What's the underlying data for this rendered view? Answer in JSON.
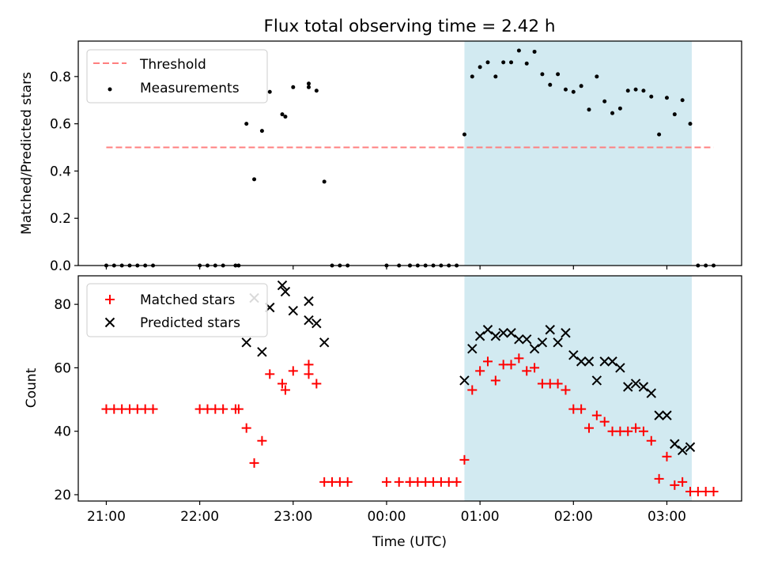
{
  "figure": {
    "title": "Flux total observing time = 2.42 h"
  },
  "colors": {
    "threshold": "#ff7f7f",
    "measurements": "#000000",
    "matched": "#ff0000",
    "predicted": "#000000",
    "observing_window": "#add8e6"
  },
  "chart_data": [
    {
      "type": "scatter",
      "ylabel": "Matched/Predicted stars",
      "ylim": [
        0,
        0.95
      ],
      "yticks": [
        0.0,
        0.2,
        0.4,
        0.6,
        0.8
      ],
      "ytick_labels": [
        "0.0",
        "0.2",
        "0.4",
        "0.6",
        "0.8"
      ],
      "xlim": [
        "20:42",
        "03:48"
      ],
      "xticks": [
        "21:00",
        "22:00",
        "23:00",
        "00:00",
        "01:00",
        "02:00",
        "03:00"
      ],
      "grid": false,
      "legend_position": "upper-left",
      "observing_window": [
        "00:50",
        "03:16"
      ],
      "legend": [
        "Threshold",
        "Measurements"
      ],
      "threshold": {
        "name": "Threshold",
        "y": 0.5,
        "x": [
          "21:00",
          "03:30"
        ]
      },
      "measurements": {
        "name": "Measurements",
        "points": [
          [
            "21:00",
            0
          ],
          [
            "21:05",
            0
          ],
          [
            "21:10",
            0
          ],
          [
            "21:15",
            0
          ],
          [
            "21:20",
            0
          ],
          [
            "21:25",
            0
          ],
          [
            "21:30",
            0
          ],
          [
            "22:00",
            0
          ],
          [
            "22:05",
            0
          ],
          [
            "22:10",
            0
          ],
          [
            "22:15",
            0
          ],
          [
            "22:23",
            0
          ],
          [
            "22:25",
            0
          ],
          [
            "22:30",
            0.6
          ],
          [
            "22:35",
            0.365
          ],
          [
            "22:40",
            0.57
          ],
          [
            "22:45",
            0.735
          ],
          [
            "22:53",
            0.64
          ],
          [
            "22:55",
            0.63
          ],
          [
            "23:00",
            0.755
          ],
          [
            "23:10",
            0.77
          ],
          [
            "23:10",
            0.755
          ],
          [
            "23:15",
            0.74
          ],
          [
            "23:20",
            0.355
          ],
          [
            "23:25",
            0
          ],
          [
            "23:30",
            0
          ],
          [
            "23:35",
            0
          ],
          [
            "00:00",
            0
          ],
          [
            "00:08",
            0
          ],
          [
            "00:15",
            0
          ],
          [
            "00:15",
            0
          ],
          [
            "00:20",
            0
          ],
          [
            "00:25",
            0
          ],
          [
            "00:30",
            0
          ],
          [
            "00:35",
            0
          ],
          [
            "00:40",
            0
          ],
          [
            "00:45",
            0
          ],
          [
            "00:50",
            0.555
          ],
          [
            "00:55",
            0.8
          ],
          [
            "01:00",
            0.84
          ],
          [
            "01:05",
            0.86
          ],
          [
            "01:10",
            0.8
          ],
          [
            "01:15",
            0.86
          ],
          [
            "01:20",
            0.86
          ],
          [
            "01:25",
            0.91
          ],
          [
            "01:30",
            0.855
          ],
          [
            "01:35",
            0.905
          ],
          [
            "01:40",
            0.81
          ],
          [
            "01:45",
            0.765
          ],
          [
            "01:50",
            0.81
          ],
          [
            "01:55",
            0.745
          ],
          [
            "02:00",
            0.735
          ],
          [
            "02:05",
            0.76
          ],
          [
            "02:10",
            0.66
          ],
          [
            "02:15",
            0.8
          ],
          [
            "02:20",
            0.695
          ],
          [
            "02:25",
            0.645
          ],
          [
            "02:30",
            0.665
          ],
          [
            "02:35",
            0.74
          ],
          [
            "02:40",
            0.745
          ],
          [
            "02:45",
            0.74
          ],
          [
            "02:50",
            0.715
          ],
          [
            "02:55",
            0.555
          ],
          [
            "03:00",
            0.71
          ],
          [
            "03:05",
            0.64
          ],
          [
            "03:10",
            0.7
          ],
          [
            "03:15",
            0.6
          ],
          [
            "03:20",
            0
          ],
          [
            "03:25",
            0
          ],
          [
            "03:30",
            0
          ]
        ]
      }
    },
    {
      "type": "scatter",
      "xlabel": "Time (UTC)",
      "ylabel": "Count",
      "ylim": [
        18,
        89
      ],
      "yticks": [
        20,
        40,
        60,
        80
      ],
      "ytick_labels": [
        "20",
        "40",
        "60",
        "80"
      ],
      "xlim": [
        "20:42",
        "03:48"
      ],
      "xticks": [
        "21:00",
        "22:00",
        "23:00",
        "00:00",
        "01:00",
        "02:00",
        "03:00"
      ],
      "xtick_labels": [
        "21:00",
        "22:00",
        "23:00",
        "00:00",
        "01:00",
        "02:00",
        "03:00"
      ],
      "grid": false,
      "legend_position": "upper-left",
      "observing_window": [
        "00:50",
        "03:16"
      ],
      "legend": [
        "Matched stars",
        "Predicted stars"
      ],
      "series": [
        {
          "name": "Matched stars",
          "marker": "plus",
          "points": [
            [
              "21:00",
              47
            ],
            [
              "21:05",
              47
            ],
            [
              "21:10",
              47
            ],
            [
              "21:15",
              47
            ],
            [
              "21:20",
              47
            ],
            [
              "21:25",
              47
            ],
            [
              "21:30",
              47
            ],
            [
              "22:00",
              47
            ],
            [
              "22:05",
              47
            ],
            [
              "22:10",
              47
            ],
            [
              "22:15",
              47
            ],
            [
              "22:23",
              47
            ],
            [
              "22:25",
              47
            ],
            [
              "22:30",
              41
            ],
            [
              "22:35",
              30
            ],
            [
              "22:40",
              37
            ],
            [
              "22:45",
              58
            ],
            [
              "22:53",
              55
            ],
            [
              "22:55",
              53
            ],
            [
              "23:00",
              59
            ],
            [
              "23:10",
              61
            ],
            [
              "23:10",
              58
            ],
            [
              "23:15",
              55
            ],
            [
              "23:20",
              24
            ],
            [
              "23:25",
              24
            ],
            [
              "23:30",
              24
            ],
            [
              "23:35",
              24
            ],
            [
              "00:00",
              24
            ],
            [
              "00:08",
              24
            ],
            [
              "00:15",
              24
            ],
            [
              "00:15",
              24
            ],
            [
              "00:20",
              24
            ],
            [
              "00:25",
              24
            ],
            [
              "00:30",
              24
            ],
            [
              "00:35",
              24
            ],
            [
              "00:40",
              24
            ],
            [
              "00:45",
              24
            ],
            [
              "00:50",
              31
            ],
            [
              "00:55",
              53
            ],
            [
              "01:00",
              59
            ],
            [
              "01:05",
              62
            ],
            [
              "01:10",
              56
            ],
            [
              "01:15",
              61
            ],
            [
              "01:20",
              61
            ],
            [
              "01:25",
              63
            ],
            [
              "01:30",
              59
            ],
            [
              "01:35",
              60
            ],
            [
              "01:40",
              55
            ],
            [
              "01:45",
              55
            ],
            [
              "01:50",
              55
            ],
            [
              "01:55",
              53
            ],
            [
              "02:00",
              47
            ],
            [
              "02:05",
              47
            ],
            [
              "02:10",
              41
            ],
            [
              "02:15",
              45
            ],
            [
              "02:20",
              43
            ],
            [
              "02:25",
              40
            ],
            [
              "02:30",
              40
            ],
            [
              "02:35",
              40
            ],
            [
              "02:40",
              41
            ],
            [
              "02:45",
              40
            ],
            [
              "02:50",
              37
            ],
            [
              "02:55",
              25
            ],
            [
              "03:00",
              32
            ],
            [
              "03:05",
              23
            ],
            [
              "03:10",
              24
            ],
            [
              "03:15",
              21
            ],
            [
              "03:20",
              21
            ],
            [
              "03:25",
              21
            ],
            [
              "03:30",
              21
            ]
          ]
        },
        {
          "name": "Predicted stars",
          "marker": "x",
          "points": [
            [
              "22:30",
              68
            ],
            [
              "22:35",
              82
            ],
            [
              "22:40",
              65
            ],
            [
              "22:45",
              79
            ],
            [
              "22:53",
              86
            ],
            [
              "22:55",
              84
            ],
            [
              "23:00",
              78
            ],
            [
              "23:10",
              81
            ],
            [
              "23:10",
              75
            ],
            [
              "23:15",
              74
            ],
            [
              "23:20",
              68
            ],
            [
              "00:50",
              56
            ],
            [
              "00:55",
              66
            ],
            [
              "01:00",
              70
            ],
            [
              "01:05",
              72
            ],
            [
              "01:10",
              70
            ],
            [
              "01:15",
              71
            ],
            [
              "01:20",
              71
            ],
            [
              "01:25",
              69
            ],
            [
              "01:30",
              69
            ],
            [
              "01:35",
              66
            ],
            [
              "01:40",
              68
            ],
            [
              "01:45",
              72
            ],
            [
              "01:50",
              68
            ],
            [
              "01:55",
              71
            ],
            [
              "02:00",
              64
            ],
            [
              "02:05",
              62
            ],
            [
              "02:10",
              62
            ],
            [
              "02:15",
              56
            ],
            [
              "02:20",
              62
            ],
            [
              "02:25",
              62
            ],
            [
              "02:30",
              60
            ],
            [
              "02:35",
              54
            ],
            [
              "02:40",
              55
            ],
            [
              "02:45",
              54
            ],
            [
              "02:50",
              52
            ],
            [
              "02:55",
              45
            ],
            [
              "03:00",
              45
            ],
            [
              "03:05",
              36
            ],
            [
              "03:10",
              34
            ],
            [
              "03:15",
              35
            ]
          ]
        }
      ]
    }
  ]
}
